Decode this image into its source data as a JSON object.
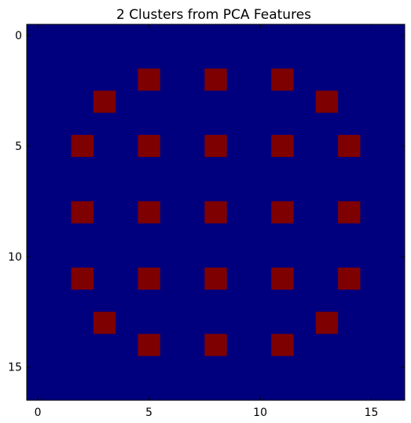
{
  "chart_data": {
    "type": "heatmap",
    "title": "2 Clusters from PCA Features",
    "xlabel": "",
    "ylabel": "",
    "grid_size": [
      17,
      17
    ],
    "xlim": [
      -0.5,
      16.5
    ],
    "ylim": [
      16.5,
      -0.5
    ],
    "xticks": [
      0,
      5,
      10,
      15
    ],
    "yticks": [
      0,
      5,
      10,
      15
    ],
    "xtick_labels": [
      "0",
      "5",
      "10",
      "15"
    ],
    "ytick_labels": [
      "0",
      "5",
      "10",
      "15"
    ],
    "background_value": 0,
    "colors": {
      "0": "#00007f",
      "1": "#7f0000"
    },
    "cluster_1_cells": [
      [
        2,
        5
      ],
      [
        2,
        8
      ],
      [
        2,
        11
      ],
      [
        3,
        3
      ],
      [
        3,
        13
      ],
      [
        5,
        2
      ],
      [
        5,
        5
      ],
      [
        5,
        8
      ],
      [
        5,
        11
      ],
      [
        5,
        14
      ],
      [
        8,
        2
      ],
      [
        8,
        5
      ],
      [
        8,
        8
      ],
      [
        8,
        11
      ],
      [
        8,
        14
      ],
      [
        11,
        2
      ],
      [
        11,
        5
      ],
      [
        11,
        8
      ],
      [
        11,
        11
      ],
      [
        11,
        14
      ],
      [
        13,
        3
      ],
      [
        13,
        13
      ],
      [
        14,
        5
      ],
      [
        14,
        8
      ],
      [
        14,
        11
      ]
    ]
  }
}
